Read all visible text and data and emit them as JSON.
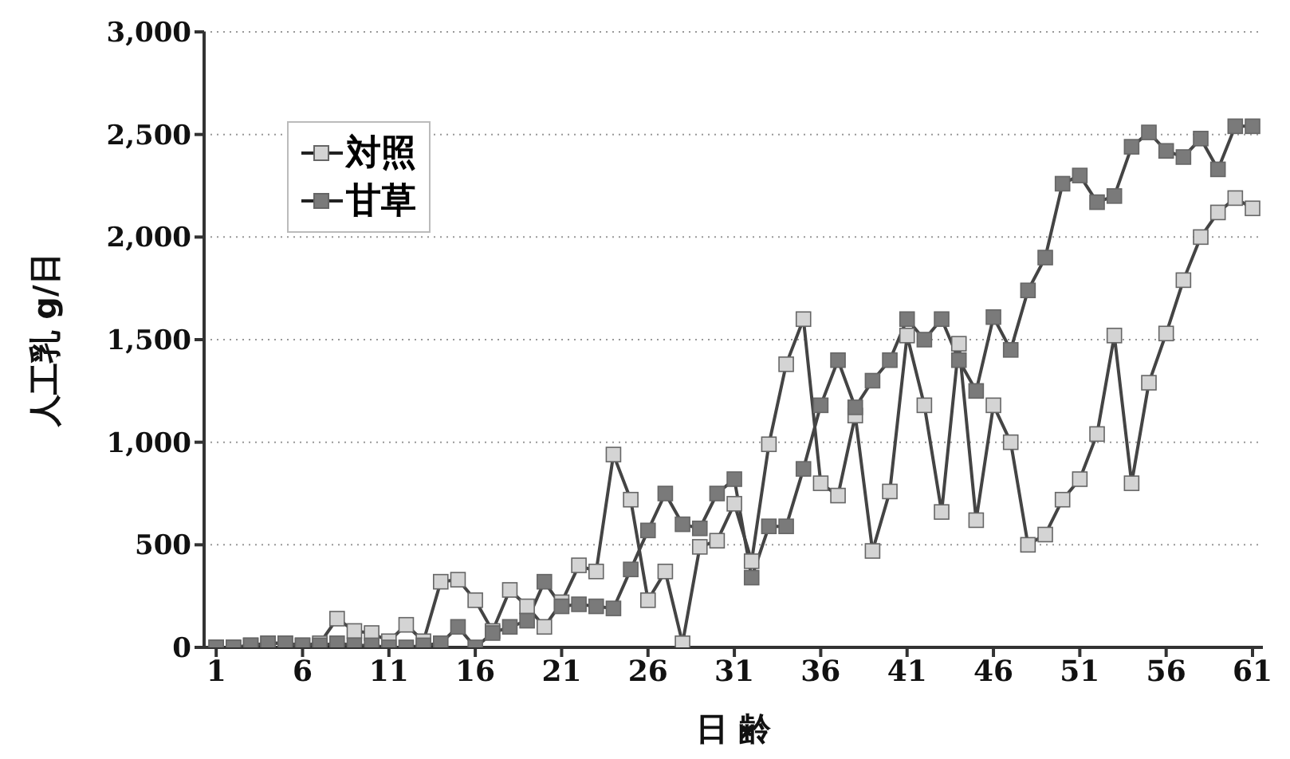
{
  "chart_data": {
    "type": "line",
    "xlabel": "日 齢",
    "ylabel": "人工乳 g/日",
    "x": [
      1,
      2,
      3,
      4,
      5,
      6,
      7,
      8,
      9,
      10,
      11,
      12,
      13,
      14,
      15,
      16,
      17,
      18,
      19,
      20,
      21,
      22,
      23,
      24,
      25,
      26,
      27,
      28,
      29,
      30,
      31,
      32,
      33,
      34,
      35,
      36,
      37,
      38,
      39,
      40,
      41,
      42,
      43,
      44,
      45,
      46,
      47,
      48,
      49,
      50,
      51,
      52,
      53,
      54,
      55,
      56,
      57,
      58,
      59,
      60,
      61
    ],
    "xlim": [
      0.3,
      61.6
    ],
    "xticks": [
      1,
      6,
      11,
      16,
      21,
      26,
      31,
      36,
      41,
      46,
      51,
      56,
      61
    ],
    "ylim": [
      0,
      3000
    ],
    "yticks": [
      {
        "value": 0,
        "label": "0"
      },
      {
        "value": 500,
        "label": "500"
      },
      {
        "value": 1000,
        "label": "1,000"
      },
      {
        "value": 1500,
        "label": "1,500"
      },
      {
        "value": 2000,
        "label": "2,000"
      },
      {
        "value": 2500,
        "label": "2,500"
      },
      {
        "value": 3000,
        "label": "3,000"
      }
    ],
    "grid": "y",
    "legend": "top left",
    "marker": "square",
    "line_style": "solid",
    "series": [
      {
        "name": "対照",
        "color": "#d4d4d4",
        "values": [
          0,
          0,
          10,
          20,
          20,
          10,
          20,
          140,
          80,
          70,
          30,
          110,
          30,
          320,
          330,
          230,
          80,
          280,
          200,
          100,
          220,
          400,
          370,
          940,
          720,
          230,
          370,
          20,
          490,
          520,
          700,
          420,
          990,
          1380,
          1600,
          800,
          740,
          1130,
          470,
          760,
          1520,
          1180,
          660,
          1480,
          620,
          1180,
          1000,
          500,
          550,
          720,
          820,
          1040,
          1520,
          800,
          1290,
          1530,
          1790,
          2000,
          2120,
          2190,
          2140
        ]
      },
      {
        "name": "甘草",
        "color": "#7a7a7a",
        "values": [
          0,
          0,
          10,
          20,
          20,
          10,
          10,
          20,
          10,
          10,
          0,
          0,
          10,
          20,
          100,
          0,
          70,
          100,
          130,
          320,
          200,
          210,
          200,
          190,
          380,
          570,
          750,
          600,
          580,
          750,
          820,
          340,
          590,
          590,
          870,
          1180,
          1400,
          1170,
          1300,
          1400,
          1600,
          1500,
          1600,
          1400,
          1250,
          1610,
          1450,
          1740,
          1900,
          2260,
          2300,
          2170,
          2200,
          2440,
          2510,
          2420,
          2390,
          2480,
          2330,
          2540,
          2540
        ]
      }
    ]
  }
}
